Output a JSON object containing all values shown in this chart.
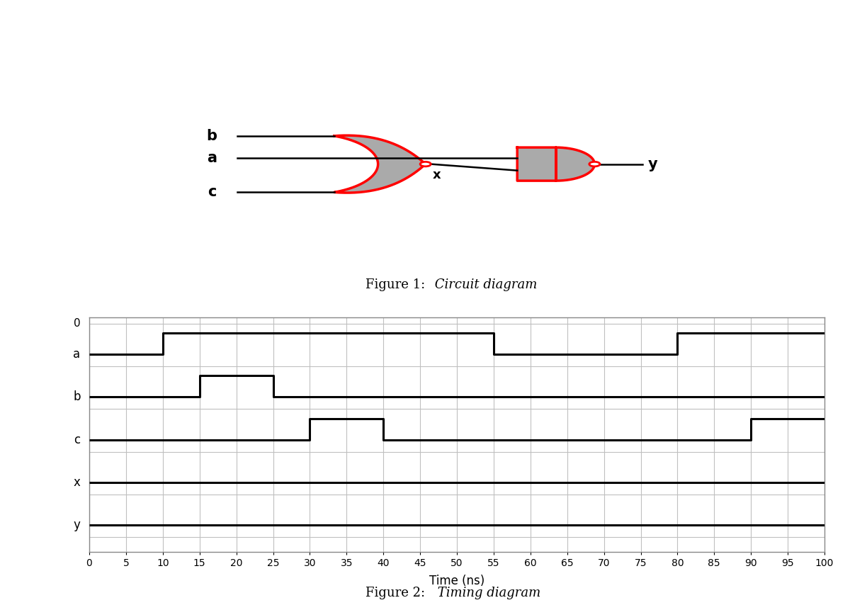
{
  "fig_width": 12.0,
  "fig_height": 8.61,
  "bg_color": "#ffffff",
  "circuit_caption_prefix": "Figure 1:",
  "circuit_caption_suffix": "  Circuit diagram",
  "timing_caption_prefix": "Figure 2:",
  "timing_caption_suffix": "  Timing diagram",
  "xticks": [
    0,
    5,
    10,
    15,
    20,
    25,
    30,
    35,
    40,
    45,
    50,
    55,
    60,
    65,
    70,
    75,
    80,
    85,
    90,
    95,
    100
  ],
  "signal_order": [
    "a",
    "b",
    "c",
    "x",
    "y"
  ],
  "gate_line_color": "#ff0000",
  "gate_fill_color": "#aaaaaa",
  "wire_color": "#000000",
  "lw_gate": 2.5,
  "lw_wire": 1.8,
  "lw_signal": 2.2,
  "waveforms": {
    "a": {
      "t": [
        0,
        10,
        10,
        55,
        55,
        80,
        80,
        100
      ],
      "v": [
        0,
        0,
        1,
        1,
        0,
        0,
        1,
        1
      ]
    },
    "b": {
      "t": [
        0,
        15,
        15,
        25,
        25,
        100
      ],
      "v": [
        0,
        0,
        1,
        1,
        0,
        0
      ]
    },
    "c": {
      "t": [
        0,
        30,
        30,
        40,
        40,
        90,
        90,
        100
      ],
      "v": [
        0,
        0,
        1,
        1,
        0,
        0,
        1,
        1
      ]
    },
    "x": {
      "t": [
        0,
        100
      ],
      "v": [
        0,
        0
      ]
    },
    "y": {
      "t": [
        0,
        100
      ],
      "v": [
        0,
        0
      ]
    }
  }
}
